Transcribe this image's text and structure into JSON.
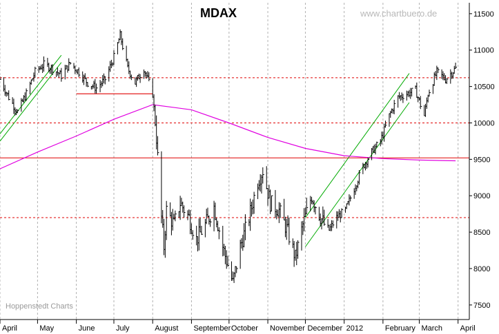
{
  "chart_data": {
    "type": "line",
    "subtype": "ohlc",
    "title": "MDAX",
    "watermark": "www.chartbuero.de",
    "source": "Hoppenstedt Charts",
    "xlabel": "",
    "ylabel": "",
    "ylim": [
      7300,
      11650
    ],
    "y_ticks": [
      7500,
      8000,
      8500,
      9000,
      9500,
      10000,
      10500,
      11000,
      11500
    ],
    "y_axis_position": "right",
    "x_range": [
      "2011-04-01",
      "2012-04-10"
    ],
    "x_ticks": [
      {
        "label": "April",
        "date": "2011-04-01"
      },
      {
        "label": "May",
        "date": "2011-05-01"
      },
      {
        "label": "June",
        "date": "2011-06-01"
      },
      {
        "label": "July",
        "date": "2011-07-01"
      },
      {
        "label": "August",
        "date": "2011-08-01"
      },
      {
        "label": "September",
        "date": "2011-09-01"
      },
      {
        "label": "October",
        "date": "2011-10-01"
      },
      {
        "label": "November",
        "date": "2011-11-01"
      },
      {
        "label": "December",
        "date": "2011-12-01"
      },
      {
        "label": "2012",
        "date": "2012-01-01"
      },
      {
        "label": "February",
        "date": "2012-02-01"
      },
      {
        "label": "March",
        "date": "2012-03-01"
      },
      {
        "label": "April",
        "date": "2012-04-01"
      }
    ],
    "grid": "vertical-dashed",
    "price_anchors": [
      [
        "2011-04-01",
        10600
      ],
      [
        "2011-04-08",
        10350
      ],
      [
        "2011-04-15",
        10150
      ],
      [
        "2011-04-22",
        10400
      ],
      [
        "2011-04-29",
        10700
      ],
      [
        "2011-05-06",
        10800
      ],
      [
        "2011-05-13",
        10750
      ],
      [
        "2011-05-20",
        10650
      ],
      [
        "2011-05-27",
        10820
      ],
      [
        "2011-06-03",
        10700
      ],
      [
        "2011-06-10",
        10550
      ],
      [
        "2011-06-17",
        10480
      ],
      [
        "2011-06-24",
        10600
      ],
      [
        "2011-07-01",
        10900
      ],
      [
        "2011-07-06",
        11200
      ],
      [
        "2011-07-12",
        10750
      ],
      [
        "2011-07-18",
        10550
      ],
      [
        "2011-07-25",
        10750
      ],
      [
        "2011-08-01",
        10400
      ],
      [
        "2011-08-04",
        9800
      ],
      [
        "2011-08-08",
        8700
      ],
      [
        "2011-08-10",
        8300
      ],
      [
        "2011-08-12",
        8800
      ],
      [
        "2011-08-18",
        8600
      ],
      [
        "2011-08-23",
        8900
      ],
      [
        "2011-08-30",
        8700
      ],
      [
        "2011-09-05",
        8400
      ],
      [
        "2011-09-12",
        8600
      ],
      [
        "2011-09-19",
        8850
      ],
      [
        "2011-09-26",
        8300
      ],
      [
        "2011-10-04",
        7800
      ],
      [
        "2011-10-10",
        8300
      ],
      [
        "2011-10-17",
        8700
      ],
      [
        "2011-10-24",
        9200
      ],
      [
        "2011-10-28",
        9350
      ],
      [
        "2011-11-03",
        8900
      ],
      [
        "2011-11-10",
        8800
      ],
      [
        "2011-11-17",
        8500
      ],
      [
        "2011-11-23",
        8150
      ],
      [
        "2011-11-29",
        8600
      ],
      [
        "2011-12-06",
        9000
      ],
      [
        "2011-12-12",
        8750
      ],
      [
        "2011-12-19",
        8500
      ],
      [
        "2011-12-26",
        8700
      ],
      [
        "2012-01-02",
        8800
      ],
      [
        "2012-01-09",
        9100
      ],
      [
        "2012-01-16",
        9400
      ],
      [
        "2012-01-23",
        9600
      ],
      [
        "2012-01-30",
        9750
      ],
      [
        "2012-02-06",
        10100
      ],
      [
        "2012-02-13",
        10350
      ],
      [
        "2012-02-20",
        10400
      ],
      [
        "2012-02-27",
        10450
      ],
      [
        "2012-03-05",
        10100
      ],
      [
        "2012-03-08",
        10400
      ],
      [
        "2012-03-15",
        10700
      ],
      [
        "2012-03-22",
        10600
      ],
      [
        "2012-03-30",
        10750
      ]
    ],
    "moving_average": [
      [
        "2011-04-01",
        9370
      ],
      [
        "2011-05-01",
        9600
      ],
      [
        "2011-06-01",
        9820
      ],
      [
        "2011-07-01",
        10050
      ],
      [
        "2011-08-01",
        10250
      ],
      [
        "2011-09-01",
        10180
      ],
      [
        "2011-10-01",
        10000
      ],
      [
        "2011-11-01",
        9800
      ],
      [
        "2011-12-01",
        9650
      ],
      [
        "2012-01-01",
        9550
      ],
      [
        "2012-02-01",
        9510
      ],
      [
        "2012-03-01",
        9490
      ],
      [
        "2012-03-30",
        9480
      ]
    ],
    "horizontal_lines": [
      {
        "value": 10620,
        "style": "dashed"
      },
      {
        "value": 10000,
        "style": "dashed"
      },
      {
        "value": 9520,
        "style": "solid"
      },
      {
        "value": 8700,
        "style": "dashed"
      }
    ],
    "support_line": {
      "from": [
        "2011-06-01",
        10400
      ],
      "to": [
        "2011-08-01",
        10400
      ]
    },
    "trend_channels": [
      {
        "upper": [
          [
            "2011-04-01",
            9850
          ],
          [
            "2011-05-20",
            10930
          ]
        ],
        "lower": [
          [
            "2011-04-01",
            9750
          ],
          [
            "2011-05-20",
            10830
          ]
        ]
      },
      {
        "upper": [
          [
            "2011-12-01",
            8700
          ],
          [
            "2012-02-22",
            10680
          ]
        ],
        "lower": [
          [
            "2011-12-01",
            8300
          ],
          [
            "2012-02-22",
            10280
          ]
        ]
      }
    ],
    "colors": {
      "price": "#000000",
      "moving_average": "#e000e0",
      "reference_lines": "#e00000",
      "trend_lines": "#00aa00",
      "grid": "#b0b0b0"
    }
  }
}
